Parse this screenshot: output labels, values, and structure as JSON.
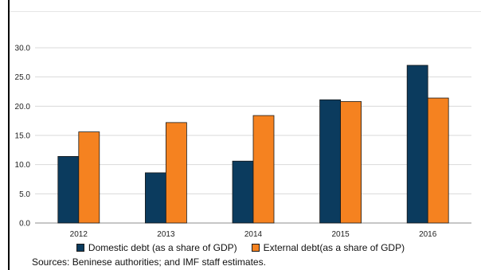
{
  "chart_data": {
    "type": "bar",
    "categories": [
      "2012",
      "2013",
      "2014",
      "2015",
      "2016"
    ],
    "series": [
      {
        "name": "Domestic debt (as a share of GDP)",
        "values": [
          11.4,
          8.6,
          10.6,
          21.1,
          27.0
        ],
        "color": "#0b3b5e"
      },
      {
        "name": "External debt(as a share of GDP)",
        "values": [
          15.6,
          17.2,
          18.4,
          20.8,
          21.4
        ],
        "color": "#f58220"
      }
    ],
    "ylim": [
      0,
      30
    ],
    "yticks": [
      "0.0",
      "5.0",
      "10.0",
      "15.0",
      "20.0",
      "25.0",
      "30.0"
    ],
    "grid": true,
    "legend_position": "bottom"
  },
  "source_note": "Sources: Beninese authorities; and IMF staff estimates."
}
